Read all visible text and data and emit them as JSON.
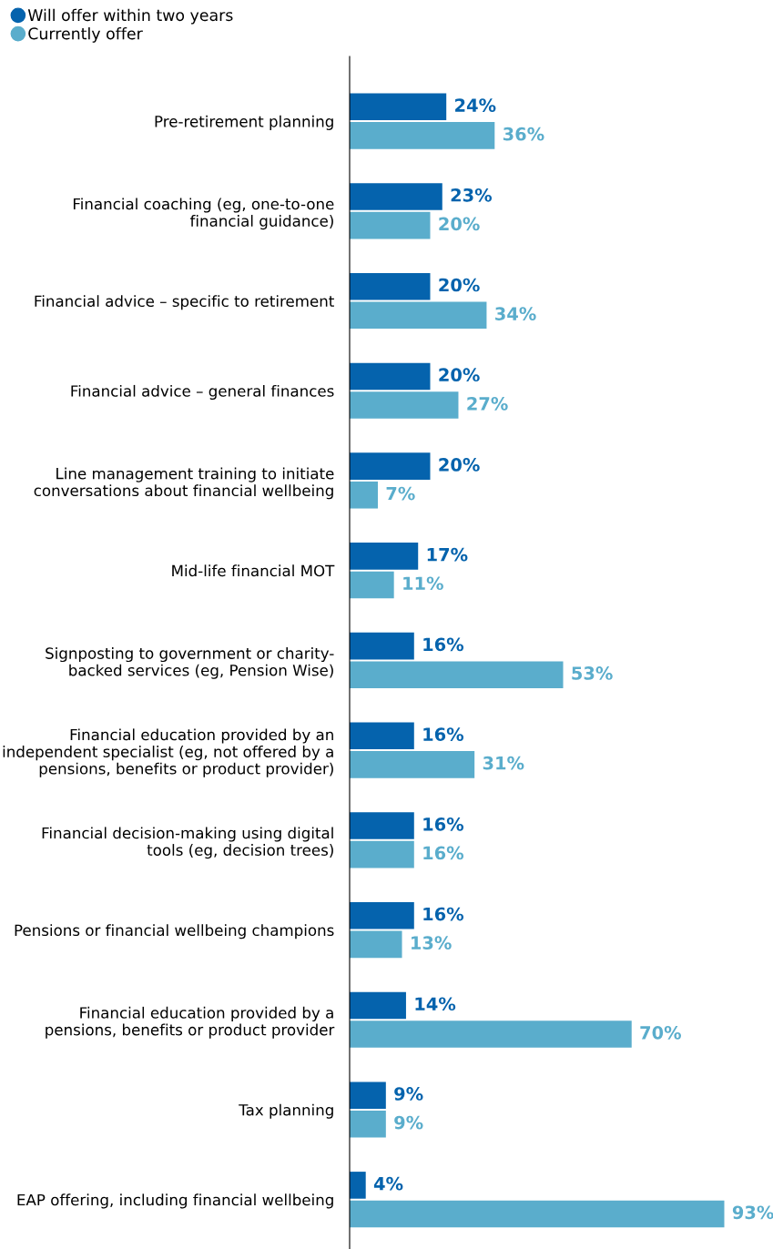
{
  "chart_data": {
    "type": "bar",
    "orientation": "horizontal",
    "legend": "top left",
    "categories": [
      "Pre-retirement planning",
      "Financial coaching (eg, one-to-one\nfinancial guidance)",
      "Financial advice – specific to retirement",
      "Financial advice – general finances",
      "Line management training to initiate\nconversations about financial wellbeing",
      "Mid-life financial MOT",
      "Signposting to government or charity-\nbacked services (eg, Pension Wise)",
      "Financial education provided by an\nindependent specialist (eg, not offered by a\npensions, benefits or product provider)",
      "Financial decision-making using digital\ntools (eg, decision trees)",
      "Pensions or financial wellbeing champions",
      "Financial education provided by a\npensions, benefits or product provider",
      "Tax planning",
      "EAP offering, including financial wellbeing"
    ],
    "series": [
      {
        "name": "Will offer within two years",
        "color": "#0563ad",
        "values": [
          24,
          23,
          20,
          20,
          20,
          17,
          16,
          16,
          16,
          16,
          14,
          9,
          4
        ],
        "value_labels": [
          "24%",
          "23%",
          "20%",
          "20%",
          "20%",
          "17%",
          "16%",
          "16%",
          "16%",
          "16%",
          "14%",
          "9%",
          "4%"
        ]
      },
      {
        "name": "Currently offer",
        "color": "#5aadcc",
        "values": [
          36,
          20,
          34,
          27,
          7,
          11,
          53,
          31,
          16,
          13,
          70,
          9,
          93
        ],
        "value_labels": [
          "36%",
          "20%",
          "34%",
          "27%",
          "7%",
          "11%",
          "53%",
          "31%",
          "16%",
          "13%",
          "70%",
          "9%",
          "93%"
        ]
      }
    ]
  }
}
